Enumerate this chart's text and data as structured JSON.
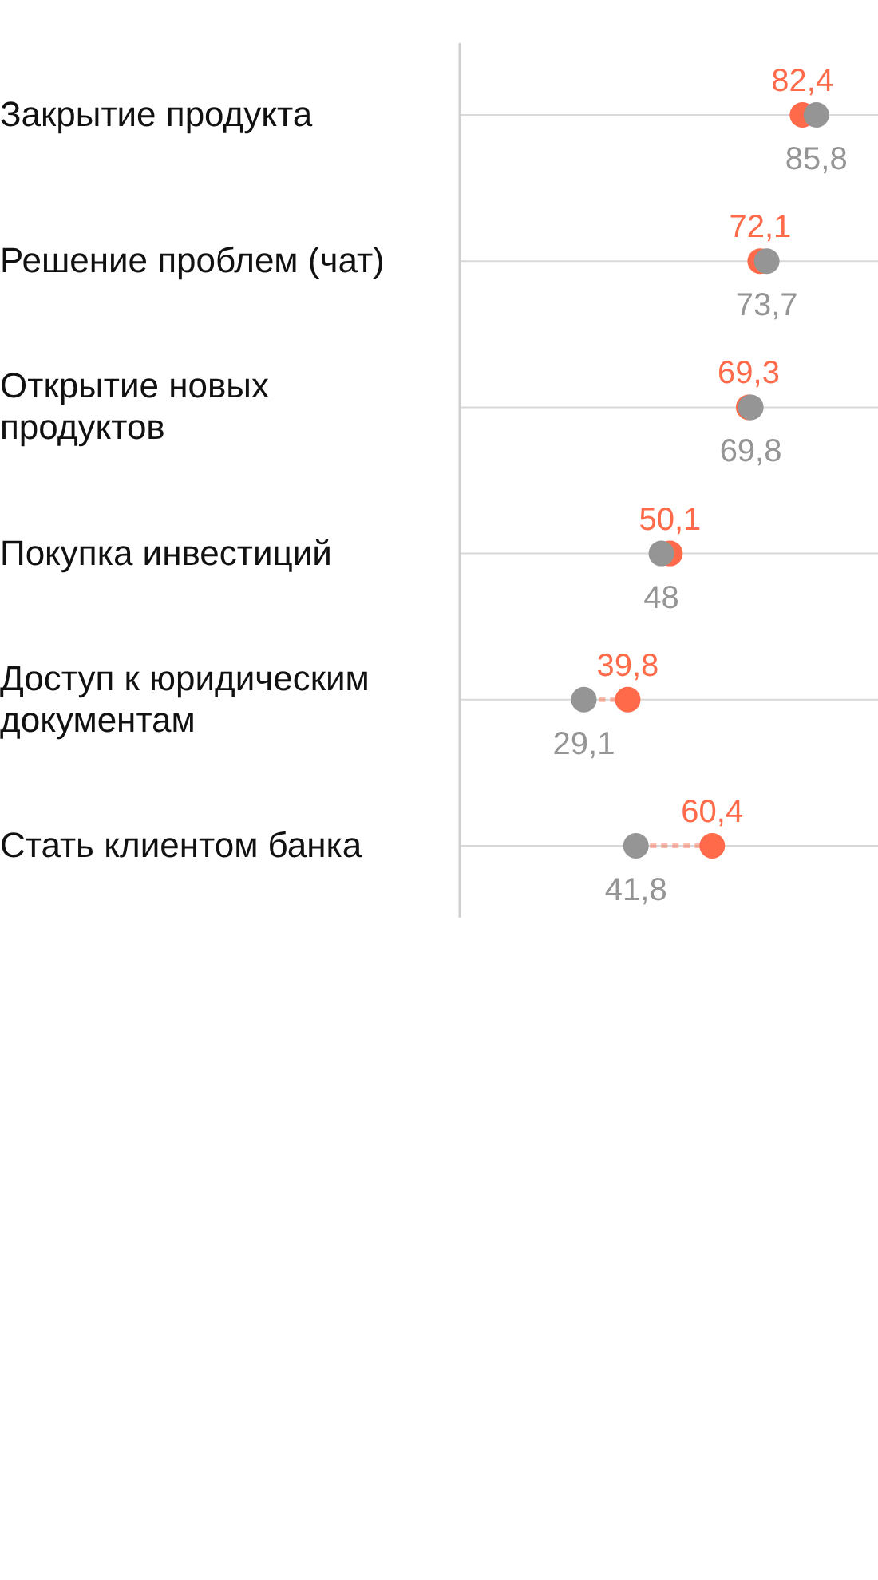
{
  "chart_data": {
    "type": "scatter",
    "orientation": "horizontal",
    "categories": [
      "Закрытие продукта",
      "Решение проблем (чат)",
      "Открытие новых продуктов",
      "Покупка инвестиций",
      "Доступ к юридическим документам",
      "Стать клиентом банка"
    ],
    "series": [
      {
        "color": "#ff6b4a",
        "values": [
          82.4,
          72.1,
          69.3,
          50.1,
          39.8,
          60.4
        ],
        "value_labels": [
          "82,4",
          "72,1",
          "69,3",
          "50,1",
          "39,8",
          "60,4"
        ]
      },
      {
        "color": "#959595",
        "values": [
          85.8,
          73.7,
          69.8,
          48,
          29.1,
          41.8
        ],
        "value_labels": [
          "85,8",
          "73,7",
          "69,8",
          "48",
          "29,1",
          "41,8"
        ]
      }
    ],
    "xlim": [
      0,
      102
    ],
    "grid": "y",
    "marker": "circle",
    "tick_labels": "y"
  }
}
